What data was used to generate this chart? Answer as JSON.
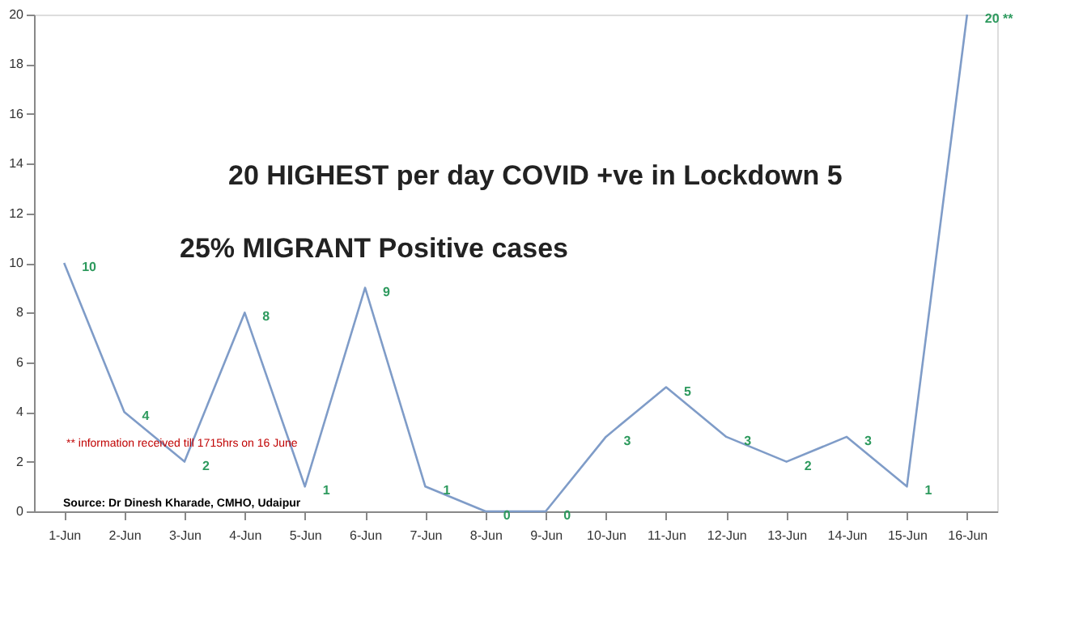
{
  "chart_data": {
    "type": "line",
    "categories": [
      "1-Jun",
      "2-Jun",
      "3-Jun",
      "4-Jun",
      "5-Jun",
      "6-Jun",
      "7-Jun",
      "8-Jun",
      "9-Jun",
      "10-Jun",
      "11-Jun",
      "12-Jun",
      "13-Jun",
      "14-Jun",
      "15-Jun",
      "16-Jun"
    ],
    "series": [
      {
        "color": "#7f9cc8",
        "values": [
          10,
          4,
          2,
          8,
          1,
          9,
          1,
          0,
          0,
          3,
          5,
          3,
          2,
          3,
          1,
          20
        ],
        "value_labels": [
          "10",
          "4",
          "2",
          "8",
          "1",
          "9",
          "1",
          "0",
          "0",
          "3",
          "5",
          "3",
          "2",
          "3",
          "1",
          "20 **"
        ]
      }
    ],
    "ylim": [
      0,
      20
    ],
    "yticks": [
      0,
      2,
      4,
      6,
      8,
      10,
      12,
      14,
      16,
      18,
      20
    ],
    "grid": false,
    "marker": "none",
    "line_style": "solid",
    "annotations": [
      "20 HIGHEST per day COVID +ve in Lockdown 5",
      "25% MIGRANT Positive cases",
      "** information received till 1715hrs on 16 June",
      "Source: Dr Dinesh Kharade, CMHO, Udaipur"
    ]
  }
}
